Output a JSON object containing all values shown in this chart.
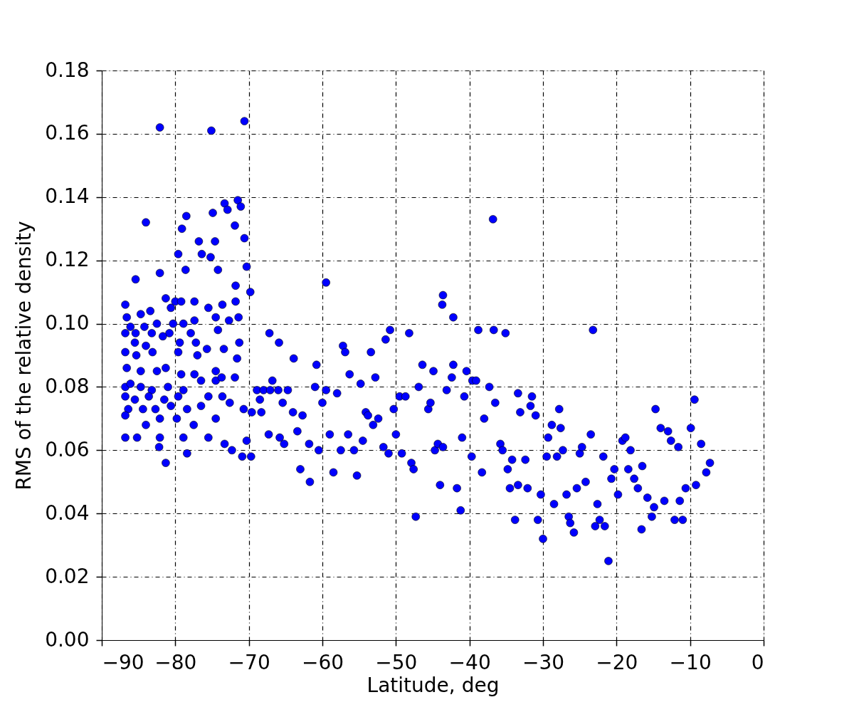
{
  "chart_data": {
    "type": "scatter",
    "xlabel": "Latitude, deg",
    "ylabel": "RMS of the relative density",
    "xlim": [
      -90,
      0
    ],
    "ylim": [
      0,
      0.18
    ],
    "xticks": [
      {
        "value": -90,
        "label": "−90"
      },
      {
        "value": -80,
        "label": "−80"
      },
      {
        "value": -70,
        "label": "−70"
      },
      {
        "value": -60,
        "label": "−60"
      },
      {
        "value": -50,
        "label": "−50"
      },
      {
        "value": -40,
        "label": "−40"
      },
      {
        "value": -30,
        "label": "−30"
      },
      {
        "value": -20,
        "label": "−20"
      },
      {
        "value": -10,
        "label": "−10"
      },
      0
    ],
    "yticks": [
      {
        "value": 0,
        "label": "0.00"
      },
      {
        "value": 0.02,
        "label": "0.02"
      },
      {
        "value": 0.04,
        "label": "0.04"
      },
      {
        "value": 0.06,
        "label": "0.06"
      },
      {
        "value": 0.08,
        "label": "0.08"
      },
      {
        "value": 0.1,
        "label": "0.10"
      },
      {
        "value": 0.12,
        "label": "0.12"
      },
      {
        "value": 0.14,
        "label": "0.14"
      },
      {
        "value": 0.16,
        "label": "0.16"
      },
      {
        "value": 0.18,
        "label": "0.18"
      }
    ],
    "grid": true,
    "marker": "circle",
    "series": [
      {
        "color": "#0000ff",
        "x": [
          -82.1,
          -75.1,
          -70.6,
          -84.0,
          -36.8,
          -71.5,
          -71.1,
          -73.3,
          -74.9,
          -72.9,
          -78.5,
          -79.1,
          -71.9,
          -70.6,
          -76.8,
          -74.6,
          -75.2,
          -76.4,
          -82.1,
          -78.6,
          -85.4,
          -70.3,
          -79.6,
          -74.2,
          -71.8,
          -69.8,
          -59.5,
          -43.6,
          -43.7,
          -42.2,
          -86.8,
          -86.6,
          -86.1,
          -84.7,
          -83.4,
          -81.3,
          -80.6,
          -80.0,
          -79.2,
          -77.4,
          -75.5,
          -73.6,
          -71.8,
          -71.4,
          -72.7,
          -74.5,
          -77.4,
          -78.9,
          -80.3,
          -82.5,
          -84.2,
          -86.8,
          -85.4,
          -83.2,
          -80.8,
          -77.9,
          -74.2,
          -85.5,
          -84.0,
          -81.7,
          -79.4,
          -77.2,
          -75.7,
          -73.4,
          -71.3,
          -86.8,
          -85.3,
          -83.1,
          -79.6,
          -77.0,
          -71.6,
          -86.6,
          -84.7,
          -82.5,
          -81.3,
          -79.2,
          -77.4,
          -74.5,
          -71.9,
          -86.8,
          -86.1,
          -84.7,
          -83.2,
          -81.0,
          -78.9,
          -76.5,
          -74.5,
          -73.7,
          -86.8,
          -85.5,
          -83.6,
          -81.5,
          -79.6,
          -75.5,
          -73.6,
          -86.4,
          -84.4,
          -82.7,
          -80.6,
          -78.4,
          -76.5,
          -72.6,
          -86.8,
          -84.0,
          -82.1,
          -79.8,
          -77.5,
          -74.5,
          -70.7,
          -86.8,
          -85.2,
          -82.1,
          -78.9,
          -75.5,
          -73.3,
          -70.3,
          -82.2,
          -78.4,
          -81.3,
          -72.3,
          -70.9,
          -69.7,
          -69.6,
          -68.9,
          -68.0,
          -67.1,
          -68.5,
          -68.3,
          -67.2,
          -65.9,
          -66.8,
          -66.0,
          -64.7,
          -65.4,
          -67.3,
          -65.8,
          -65.2,
          -64.0,
          -63.4,
          -63.9,
          -63.0,
          -62.7,
          -61.8,
          -61.7,
          -61.0,
          -60.8,
          -60.5,
          -60.0,
          -59.5,
          -59.0,
          -58.5,
          -58.0,
          -57.5,
          -57.2,
          -56.9,
          -56.3,
          -56.5,
          -55.7,
          -55.3,
          -54.8,
          -54.5,
          -54.1,
          -53.8,
          -53.4,
          -53.1,
          -52.8,
          -52.4,
          -51.7,
          -51.4,
          -51.0,
          -50.8,
          -50.3,
          -50.0,
          -49.5,
          -49.2,
          -48.7,
          -48.2,
          -47.9,
          -47.6,
          -47.3,
          -46.9,
          -46.4,
          -45.6,
          -45.3,
          -44.9,
          -44.7,
          -44.3,
          -44.0,
          -43.6,
          -43.1,
          -42.4,
          -42.2,
          -41.7,
          -41.2,
          -41.0,
          -40.7,
          -40.4,
          -39.7,
          -39.6,
          -39.1,
          -38.8,
          -38.3,
          -38.0,
          -37.3,
          -36.7,
          -36.5,
          -35.8,
          -35.5,
          -35.1,
          -34.8,
          -34.5,
          -34.2,
          -33.8,
          -33.4,
          -33.4,
          -33.1,
          -32.4,
          -32.1,
          -31.7,
          -31.5,
          -31.0,
          -30.7,
          -30.3,
          -30.0,
          -29.5,
          -29.3,
          -28.8,
          -28.5,
          -28.1,
          -27.8,
          -27.6,
          -27.3,
          -26.8,
          -26.5,
          -26.3,
          -25.8,
          -25.4,
          -25.0,
          -24.7,
          -24.2,
          -23.5,
          -23.2,
          -22.9,
          -22.6,
          -22.3,
          -21.8,
          -21.6,
          -21.1,
          -20.7,
          -20.3,
          -19.8,
          -19.2,
          -18.8,
          -18.4,
          -18.1,
          -17.6,
          -17.1,
          -16.6,
          -16.5,
          -15.8,
          -15.2,
          -14.9,
          -14.7,
          -14.0,
          -13.5,
          -13.0,
          -12.6,
          -12.1,
          -11.6,
          -11.4,
          -11.0,
          -10.6,
          -9.9,
          -9.4,
          -9.2,
          -8.5,
          -7.8,
          -7.3
        ],
        "values": [
          0.162,
          0.161,
          0.164,
          0.132,
          0.133,
          0.139,
          0.137,
          0.138,
          0.135,
          0.136,
          0.134,
          0.13,
          0.131,
          0.127,
          0.126,
          0.126,
          0.121,
          0.122,
          0.116,
          0.117,
          0.114,
          0.118,
          0.122,
          0.117,
          0.112,
          0.11,
          0.113,
          0.109,
          0.106,
          0.102,
          0.106,
          0.102,
          0.099,
          0.103,
          0.104,
          0.108,
          0.105,
          0.107,
          0.107,
          0.107,
          0.105,
          0.106,
          0.107,
          0.102,
          0.101,
          0.102,
          0.101,
          0.1,
          0.1,
          0.1,
          0.099,
          0.097,
          0.097,
          0.097,
          0.097,
          0.097,
          0.098,
          0.094,
          0.093,
          0.096,
          0.094,
          0.094,
          0.092,
          0.092,
          0.094,
          0.091,
          0.09,
          0.091,
          0.091,
          0.09,
          0.089,
          0.086,
          0.085,
          0.085,
          0.086,
          0.084,
          0.084,
          0.085,
          0.083,
          0.08,
          0.081,
          0.08,
          0.079,
          0.08,
          0.079,
          0.082,
          0.082,
          0.083,
          0.077,
          0.076,
          0.077,
          0.076,
          0.077,
          0.077,
          0.077,
          0.073,
          0.073,
          0.073,
          0.074,
          0.073,
          0.074,
          0.075,
          0.071,
          0.068,
          0.07,
          0.07,
          0.068,
          0.07,
          0.073,
          0.064,
          0.064,
          0.064,
          0.064,
          0.064,
          0.062,
          0.063,
          0.061,
          0.059,
          0.056,
          0.06,
          0.058,
          0.058,
          0.072,
          0.079,
          0.079,
          0.079,
          0.076,
          0.072,
          0.097,
          0.094,
          0.082,
          0.079,
          0.079,
          0.075,
          0.065,
          0.064,
          0.062,
          0.072,
          0.066,
          0.089,
          0.054,
          0.071,
          0.062,
          0.05,
          0.08,
          0.087,
          0.06,
          0.075,
          0.079,
          0.065,
          0.053,
          0.078,
          0.06,
          0.093,
          0.091,
          0.084,
          0.065,
          0.06,
          0.052,
          0.081,
          0.063,
          0.072,
          0.071,
          0.091,
          0.068,
          0.083,
          0.07,
          0.061,
          0.095,
          0.059,
          0.098,
          0.073,
          0.065,
          0.077,
          0.059,
          0.077,
          0.097,
          0.056,
          0.054,
          0.039,
          0.08,
          0.087,
          0.073,
          0.075,
          0.085,
          0.06,
          0.062,
          0.049,
          0.061,
          0.079,
          0.083,
          0.087,
          0.048,
          0.041,
          0.064,
          0.077,
          0.085,
          0.058,
          0.082,
          0.082,
          0.098,
          0.053,
          0.07,
          0.08,
          0.098,
          0.075,
          0.062,
          0.06,
          0.097,
          0.054,
          0.048,
          0.057,
          0.038,
          0.049,
          0.078,
          0.072,
          0.057,
          0.048,
          0.074,
          0.077,
          0.071,
          0.038,
          0.046,
          0.032,
          0.058,
          0.064,
          0.068,
          0.043,
          0.058,
          0.073,
          0.067,
          0.06,
          0.046,
          0.039,
          0.037,
          0.034,
          0.048,
          0.059,
          0.061,
          0.05,
          0.065,
          0.098,
          0.036,
          0.043,
          0.038,
          0.058,
          0.036,
          0.025,
          0.051,
          0.054,
          0.046,
          0.063,
          0.064,
          0.054,
          0.06,
          0.051,
          0.048,
          0.035,
          0.055,
          0.045,
          0.039,
          0.042,
          0.073,
          0.067,
          0.044,
          0.066,
          0.063,
          0.038,
          0.061,
          0.044,
          0.038,
          0.048,
          0.067,
          0.076,
          0.049,
          0.062,
          0.053,
          0.056
        ]
      }
    ]
  }
}
